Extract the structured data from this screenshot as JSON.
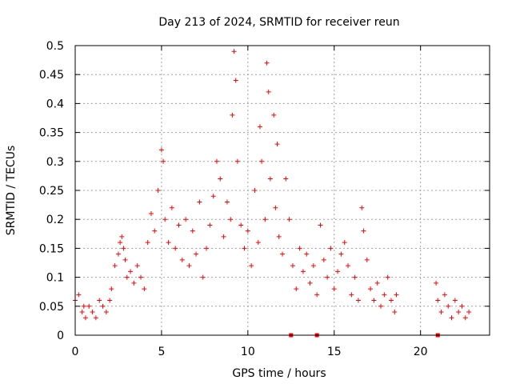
{
  "chart_data": {
    "type": "scatter",
    "title": "Day 213 of 2024, SRMTID for receiver reun",
    "xlabel": "GPS time / hours",
    "ylabel": "SRMTID / TECUs",
    "xlim": [
      0,
      24
    ],
    "ylim": [
      0,
      0.5
    ],
    "xticks": [
      0,
      5,
      10,
      15,
      20
    ],
    "xtick_labels": [
      "0",
      "5",
      "10",
      "15",
      "20"
    ],
    "yticks": [
      0,
      0.05,
      0.1,
      0.15,
      0.2,
      0.25,
      0.3,
      0.35,
      0.4,
      0.45,
      0.5
    ],
    "ytick_labels": [
      "0",
      "0.05",
      "0.1",
      "0.15",
      "0.2",
      "0.25",
      "0.3",
      "0.35",
      "0.4",
      "0.45",
      "0.5"
    ],
    "grid": true,
    "marker": "+",
    "color": "#ff0000",
    "series": [
      {
        "name": "SRMTID",
        "x": [
          0.0,
          0.2,
          0.4,
          0.5,
          0.6,
          0.8,
          1.0,
          1.2,
          1.4,
          1.6,
          1.8,
          2.0,
          2.1,
          2.3,
          2.5,
          2.6,
          2.7,
          2.8,
          2.9,
          3.0,
          3.2,
          3.4,
          3.6,
          3.8,
          4.0,
          4.2,
          4.4,
          4.6,
          4.8,
          5.0,
          5.1,
          5.2,
          5.4,
          5.6,
          5.8,
          6.0,
          6.2,
          6.4,
          6.6,
          6.8,
          7.0,
          7.2,
          7.4,
          7.6,
          7.8,
          8.0,
          8.2,
          8.4,
          8.6,
          8.8,
          9.0,
          9.1,
          9.2,
          9.3,
          9.4,
          9.6,
          9.8,
          10.0,
          10.2,
          10.4,
          10.6,
          10.7,
          10.8,
          11.0,
          11.1,
          11.2,
          11.3,
          11.5,
          11.6,
          11.7,
          11.8,
          12.0,
          12.2,
          12.4,
          12.6,
          12.8,
          13.0,
          13.2,
          13.4,
          13.6,
          13.8,
          14.0,
          14.2,
          14.4,
          14.6,
          14.8,
          15.0,
          15.2,
          15.4,
          15.6,
          15.8,
          16.0,
          16.2,
          16.4,
          16.6,
          16.7,
          16.9,
          17.1,
          17.3,
          17.5,
          17.7,
          17.9,
          18.1,
          18.3,
          18.5,
          18.6,
          20.9,
          21.0,
          21.2,
          21.4,
          21.6,
          21.8,
          22.0,
          22.2,
          22.4,
          22.6,
          22.8
        ],
        "y": [
          0.06,
          0.07,
          0.04,
          0.05,
          0.03,
          0.05,
          0.04,
          0.03,
          0.06,
          0.05,
          0.04,
          0.06,
          0.08,
          0.12,
          0.14,
          0.16,
          0.17,
          0.15,
          0.13,
          0.1,
          0.11,
          0.09,
          0.12,
          0.1,
          0.08,
          0.16,
          0.21,
          0.18,
          0.25,
          0.32,
          0.3,
          0.2,
          0.16,
          0.22,
          0.15,
          0.19,
          0.13,
          0.2,
          0.12,
          0.18,
          0.14,
          0.23,
          0.1,
          0.15,
          0.19,
          0.24,
          0.3,
          0.27,
          0.17,
          0.23,
          0.2,
          0.38,
          0.49,
          0.44,
          0.3,
          0.19,
          0.15,
          0.18,
          0.12,
          0.25,
          0.16,
          0.36,
          0.3,
          0.2,
          0.47,
          0.42,
          0.27,
          0.38,
          0.22,
          0.33,
          0.17,
          0.14,
          0.27,
          0.2,
          0.12,
          0.08,
          0.15,
          0.11,
          0.14,
          0.09,
          0.12,
          0.07,
          0.19,
          0.13,
          0.1,
          0.15,
          0.08,
          0.11,
          0.14,
          0.16,
          0.12,
          0.07,
          0.1,
          0.06,
          0.22,
          0.18,
          0.13,
          0.08,
          0.06,
          0.09,
          0.05,
          0.07,
          0.1,
          0.06,
          0.04,
          0.07,
          0.09,
          0.06,
          0.04,
          0.07,
          0.05,
          0.03,
          0.06,
          0.04,
          0.05,
          0.03,
          0.04
        ],
        "zero_markers_x": [
          12.5,
          14.0,
          21.0
        ]
      }
    ]
  }
}
